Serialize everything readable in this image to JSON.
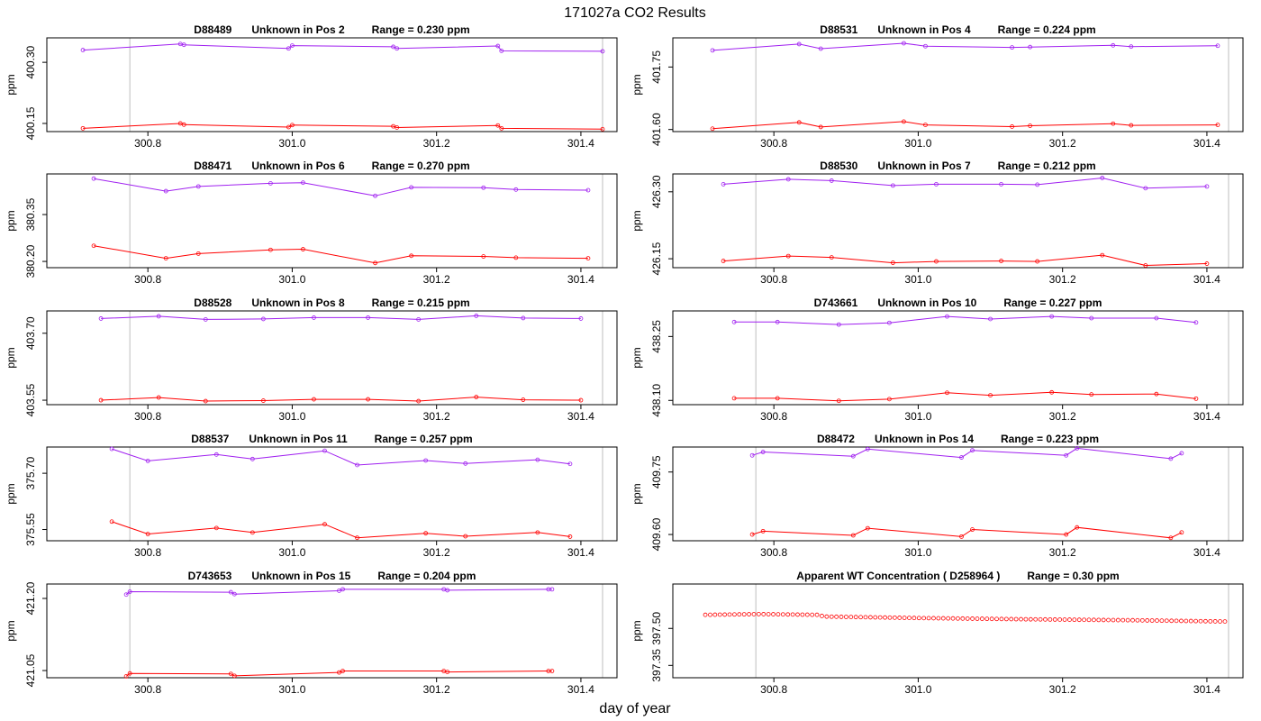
{
  "figure": {
    "title": "171027a  CO2 Results",
    "xlabel": "day of year",
    "ylabel": "ppm"
  },
  "colors": {
    "purple": "#a020f0",
    "red": "#ff0000",
    "vline": "#bebebe",
    "axis": "#000000"
  },
  "chart_data": [
    {
      "type": "line",
      "title": {
        "id": "D88489",
        "desc": "Unknown in Pos 2",
        "range": "Range =  0.230 ppm"
      },
      "xlim": [
        300.66,
        301.45
      ],
      "ylim": [
        400.13,
        400.36
      ],
      "xticks": [
        300.8,
        301.0,
        301.2,
        301.4
      ],
      "yticks": [
        400.15,
        400.3
      ],
      "ytick_labels": [
        "400.15",
        "400.30"
      ],
      "vlines": [
        300.775,
        301.43
      ],
      "series": [
        {
          "name": "upper",
          "color": "purple",
          "x": [
            300.71,
            300.845,
            300.85,
            300.995,
            301.0,
            301.14,
            301.145,
            301.285,
            301.29,
            301.43
          ],
          "y": [
            400.33,
            400.345,
            400.343,
            400.334,
            400.341,
            400.338,
            400.334,
            400.34,
            400.328,
            400.327
          ]
        },
        {
          "name": "lower",
          "color": "red",
          "x": [
            300.71,
            300.845,
            300.85,
            300.995,
            301.0,
            301.14,
            301.145,
            301.285,
            301.29,
            301.43
          ],
          "y": [
            400.138,
            400.15,
            400.147,
            400.141,
            400.146,
            400.143,
            400.14,
            400.145,
            400.138,
            400.136
          ]
        }
      ]
    },
    {
      "type": "line",
      "title": {
        "id": "D88531",
        "desc": "Unknown in Pos 4",
        "range": "Range =  0.224 ppm"
      },
      "xlim": [
        300.66,
        301.45
      ],
      "ylim": [
        401.595,
        401.82
      ],
      "xticks": [
        300.8,
        301.0,
        301.2,
        301.4
      ],
      "yticks": [
        401.6,
        401.75
      ],
      "ytick_labels": [
        "401.60",
        "401.75"
      ],
      "vlines": [
        300.775,
        301.43
      ],
      "series": [
        {
          "name": "upper",
          "color": "purple",
          "x": [
            300.715,
            300.835,
            300.865,
            300.98,
            301.01,
            301.13,
            301.155,
            301.27,
            301.295,
            301.415
          ],
          "y": [
            401.79,
            401.805,
            401.794,
            401.807,
            401.8,
            401.797,
            401.798,
            401.802,
            401.799,
            401.801
          ]
        },
        {
          "name": "lower",
          "color": "red",
          "x": [
            300.715,
            300.835,
            300.865,
            300.98,
            301.01,
            301.13,
            301.155,
            301.27,
            301.295,
            301.415
          ],
          "y": [
            401.602,
            401.617,
            401.606,
            401.619,
            401.611,
            401.607,
            401.609,
            401.614,
            401.61,
            401.611
          ]
        }
      ]
    },
    {
      "type": "line",
      "title": {
        "id": "D88471",
        "desc": "Unknown in Pos 6",
        "range": "Range =  0.270 ppm"
      },
      "xlim": [
        300.66,
        301.45
      ],
      "ylim": [
        380.18,
        380.48
      ],
      "xticks": [
        300.8,
        301.0,
        301.2,
        301.4
      ],
      "yticks": [
        380.2,
        380.35
      ],
      "ytick_labels": [
        "380.20",
        "380.35"
      ],
      "vlines": [
        300.775,
        301.43
      ],
      "series": [
        {
          "name": "upper",
          "color": "purple",
          "x": [
            300.725,
            300.825,
            300.87,
            300.97,
            301.015,
            301.115,
            301.165,
            301.265,
            301.31,
            301.41
          ],
          "y": [
            380.465,
            380.425,
            380.44,
            380.45,
            380.452,
            380.41,
            380.437,
            380.436,
            380.43,
            380.428
          ]
        },
        {
          "name": "lower",
          "color": "red",
          "x": [
            300.725,
            300.825,
            300.87,
            300.97,
            301.015,
            301.115,
            301.165,
            301.265,
            301.31,
            301.41
          ],
          "y": [
            380.25,
            380.21,
            380.225,
            380.237,
            380.239,
            380.195,
            380.218,
            380.216,
            380.212,
            380.21
          ]
        }
      ]
    },
    {
      "type": "line",
      "title": {
        "id": "D88530",
        "desc": "Unknown in Pos 7",
        "range": "Range =  0.212 ppm"
      },
      "xlim": [
        300.66,
        301.45
      ],
      "ylim": [
        426.13,
        426.34
      ],
      "xticks": [
        300.8,
        301.0,
        301.2,
        301.4
      ],
      "yticks": [
        426.15,
        426.3
      ],
      "ytick_labels": [
        "426.15",
        "426.30"
      ],
      "vlines": [
        300.775,
        301.43
      ],
      "series": [
        {
          "name": "upper",
          "color": "purple",
          "x": [
            300.73,
            300.82,
            300.88,
            300.965,
            301.025,
            301.115,
            301.165,
            301.255,
            301.315,
            301.4
          ],
          "y": [
            426.317,
            426.328,
            426.325,
            426.314,
            426.317,
            426.317,
            426.316,
            426.331,
            426.308,
            426.312
          ]
        },
        {
          "name": "lower",
          "color": "red",
          "x": [
            300.73,
            300.82,
            300.88,
            300.965,
            301.025,
            301.115,
            301.165,
            301.255,
            301.315,
            301.4
          ],
          "y": [
            426.145,
            426.156,
            426.153,
            426.141,
            426.144,
            426.145,
            426.144,
            426.158,
            426.135,
            426.139
          ]
        }
      ]
    },
    {
      "type": "line",
      "title": {
        "id": "D88528",
        "desc": "Unknown in Pos 8",
        "range": "Range =  0.215 ppm"
      },
      "xlim": [
        300.66,
        301.45
      ],
      "ylim": [
        403.54,
        403.75
      ],
      "xticks": [
        300.8,
        301.0,
        301.2,
        301.4
      ],
      "yticks": [
        403.55,
        403.7
      ],
      "ytick_labels": [
        "403.55",
        "403.70"
      ],
      "vlines": [
        300.775,
        301.43
      ],
      "series": [
        {
          "name": "upper",
          "color": "purple",
          "x": [
            300.735,
            300.815,
            300.88,
            300.96,
            301.03,
            301.105,
            301.175,
            301.255,
            301.32,
            301.4
          ],
          "y": [
            403.733,
            403.738,
            403.731,
            403.732,
            403.735,
            403.735,
            403.731,
            403.739,
            403.734,
            403.733
          ]
        },
        {
          "name": "lower",
          "color": "red",
          "x": [
            300.735,
            300.815,
            300.88,
            300.96,
            301.03,
            301.105,
            301.175,
            301.255,
            301.32,
            301.4
          ],
          "y": [
            403.55,
            403.556,
            403.548,
            403.549,
            403.552,
            403.552,
            403.548,
            403.557,
            403.551,
            403.55
          ]
        }
      ]
    },
    {
      "type": "line",
      "title": {
        "id": "D743661",
        "desc": "Unknown in Pos 10",
        "range": "Range =  0.227 ppm"
      },
      "xlim": [
        300.66,
        301.45
      ],
      "ylim": [
        438.09,
        438.31
      ],
      "xticks": [
        300.8,
        301.0,
        301.2,
        301.4
      ],
      "yticks": [
        438.1,
        438.25
      ],
      "ytick_labels": [
        "438.10",
        "438.25"
      ],
      "vlines": [
        300.775,
        301.43
      ],
      "series": [
        {
          "name": "upper",
          "color": "purple",
          "x": [
            300.745,
            300.805,
            300.89,
            300.96,
            301.04,
            301.1,
            301.185,
            301.24,
            301.33,
            301.385
          ],
          "y": [
            438.284,
            438.284,
            438.278,
            438.282,
            438.297,
            438.291,
            438.297,
            438.293,
            438.293,
            438.283
          ]
        },
        {
          "name": "lower",
          "color": "red",
          "x": [
            300.745,
            300.805,
            300.89,
            300.96,
            301.04,
            301.1,
            301.185,
            301.24,
            301.33,
            301.385
          ],
          "y": [
            438.105,
            438.105,
            438.099,
            438.103,
            438.118,
            438.112,
            438.119,
            438.114,
            438.115,
            438.104
          ]
        }
      ]
    },
    {
      "type": "line",
      "title": {
        "id": "D88537",
        "desc": "Unknown in Pos 11",
        "range": "Range =  0.257 ppm"
      },
      "xlim": [
        300.66,
        301.45
      ],
      "ylim": [
        375.52,
        375.77
      ],
      "xticks": [
        300.8,
        301.0,
        301.2,
        301.4
      ],
      "yticks": [
        375.55,
        375.7
      ],
      "ytick_labels": [
        "375.55",
        "375.70"
      ],
      "vlines": [
        300.775,
        301.43
      ],
      "series": [
        {
          "name": "upper",
          "color": "purple",
          "x": [
            300.75,
            300.8,
            300.895,
            300.945,
            301.045,
            301.09,
            301.185,
            301.24,
            301.34,
            301.385
          ],
          "y": [
            375.765,
            375.733,
            375.75,
            375.738,
            375.76,
            375.722,
            375.734,
            375.726,
            375.736,
            375.725
          ]
        },
        {
          "name": "lower",
          "color": "red",
          "x": [
            300.75,
            300.8,
            300.895,
            300.945,
            301.045,
            301.09,
            301.185,
            301.24,
            301.34,
            301.385
          ],
          "y": [
            375.571,
            375.538,
            375.554,
            375.542,
            375.564,
            375.528,
            375.54,
            375.532,
            375.542,
            375.531
          ]
        }
      ]
    },
    {
      "type": "line",
      "title": {
        "id": "D88472",
        "desc": "Unknown in Pos 14",
        "range": "Range =  0.223 ppm"
      },
      "xlim": [
        300.66,
        301.45
      ],
      "ylim": [
        409.585,
        409.81
      ],
      "xticks": [
        300.8,
        301.0,
        301.2,
        301.4
      ],
      "yticks": [
        409.6,
        409.75
      ],
      "ytick_labels": [
        "409.60",
        "409.75"
      ],
      "vlines": [
        300.775,
        301.43
      ],
      "series": [
        {
          "name": "upper",
          "color": "purple",
          "x": [
            300.77,
            300.785,
            300.91,
            300.93,
            301.06,
            301.075,
            301.205,
            301.22,
            301.35,
            301.365
          ],
          "y": [
            409.79,
            409.798,
            409.788,
            409.805,
            409.785,
            409.802,
            409.79,
            409.807,
            409.782,
            409.795
          ]
        },
        {
          "name": "lower",
          "color": "red",
          "x": [
            300.77,
            300.785,
            300.91,
            300.93,
            301.06,
            301.075,
            301.205,
            301.22,
            301.35,
            301.365
          ],
          "y": [
            409.6,
            409.608,
            409.598,
            409.615,
            409.595,
            409.612,
            409.6,
            409.617,
            409.592,
            409.605
          ]
        }
      ]
    },
    {
      "type": "line",
      "title": {
        "id": "D743653",
        "desc": "Unknown in Pos 15",
        "range": "Range =  0.204 ppm"
      },
      "xlim": [
        300.66,
        301.45
      ],
      "ylim": [
        421.035,
        421.23
      ],
      "xticks": [
        300.8,
        301.0,
        301.2,
        301.4
      ],
      "yticks": [
        421.05,
        421.2
      ],
      "ytick_labels": [
        "421.05",
        "421.20"
      ],
      "vlines": [
        300.775,
        301.43
      ],
      "series": [
        {
          "name": "upper",
          "color": "purple",
          "x": [
            300.77,
            300.775,
            300.915,
            300.92,
            301.065,
            301.07,
            301.21,
            301.215,
            301.355,
            301.36
          ],
          "y": [
            421.208,
            421.214,
            421.213,
            421.209,
            421.216,
            421.219,
            421.219,
            421.217,
            421.219,
            421.219
          ]
        },
        {
          "name": "lower",
          "color": "red",
          "x": [
            300.77,
            300.775,
            300.915,
            300.92,
            301.065,
            301.07,
            301.21,
            301.215,
            301.355,
            301.36
          ],
          "y": [
            421.038,
            421.044,
            421.043,
            421.039,
            421.046,
            421.049,
            421.049,
            421.047,
            421.049,
            421.049
          ]
        }
      ]
    },
    {
      "type": "scatter",
      "title": {
        "id": "Apparent WT Concentration ( D258964 )",
        "desc": "",
        "range": "Range = 0.30 ppm"
      },
      "xlim": [
        300.66,
        301.45
      ],
      "ylim": [
        397.3,
        397.68
      ],
      "xticks": [
        300.8,
        301.0,
        301.2,
        301.4
      ],
      "yticks": [
        397.35,
        397.5
      ],
      "ytick_labels": [
        "397.35",
        "397.50"
      ],
      "vlines": [
        300.775,
        301.43
      ],
      "series": [
        {
          "name": "WT",
          "color": "red",
          "x_start": 300.705,
          "x_end": 301.425,
          "n": 108,
          "profile_x": [
            300.705,
            300.73,
            300.78,
            300.86,
            300.87,
            301.0,
            301.15,
            301.3,
            301.425
          ],
          "profile_y": [
            397.555,
            397.556,
            397.558,
            397.555,
            397.548,
            397.542,
            397.537,
            397.533,
            397.528
          ]
        }
      ]
    }
  ]
}
